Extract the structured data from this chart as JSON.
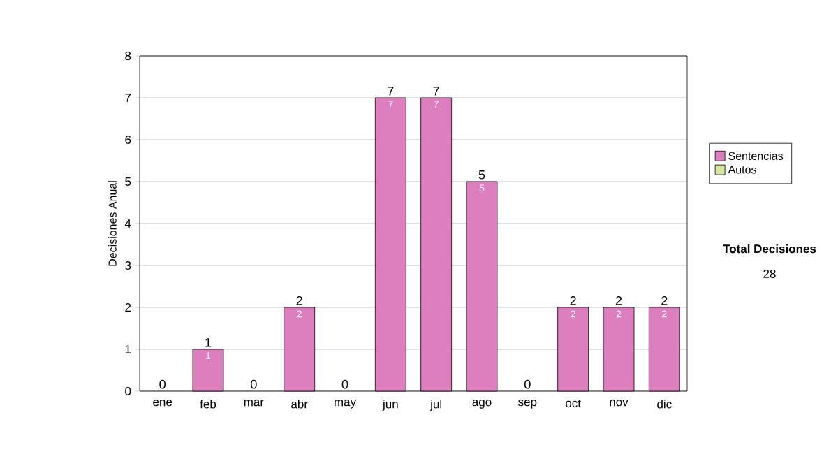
{
  "chart_data": {
    "type": "bar",
    "stacked": true,
    "ylabel": "Decisiones Anual",
    "categories": [
      "ene",
      "feb",
      "mar",
      "abr",
      "may",
      "jun",
      "jul",
      "ago",
      "sep",
      "oct",
      "nov",
      "dic"
    ],
    "series": [
      {
        "name": "Sentencias",
        "color": "#dd7fbe",
        "values": [
          0,
          1,
          0,
          2,
          0,
          7,
          7,
          5,
          0,
          2,
          2,
          2
        ],
        "value_labels": [
          null,
          "1",
          null,
          "2",
          null,
          "7",
          "7",
          "5",
          null,
          "2",
          "2",
          "2"
        ]
      },
      {
        "name": "Autos",
        "color": "#d4e6a0",
        "values": [
          0,
          0,
          0,
          0,
          0,
          0,
          0,
          0,
          0,
          0,
          0,
          0
        ]
      }
    ],
    "totals": [
      "0",
      "1",
      "0",
      "2",
      "0",
      "7",
      "7",
      "5",
      "0",
      "2",
      "2",
      "2"
    ],
    "ylim": [
      0,
      8
    ],
    "yticks": [
      0,
      1,
      2,
      3,
      4,
      5,
      6,
      7,
      8
    ],
    "grid": "y",
    "legend": "right",
    "annotations": [
      "**Total Decisiones**",
      "28"
    ]
  }
}
